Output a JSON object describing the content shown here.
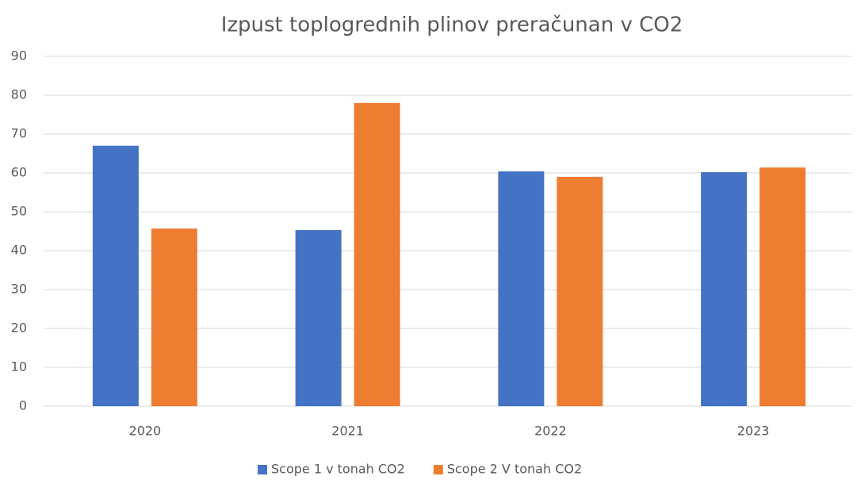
{
  "chart_data": {
    "type": "bar",
    "title": "Izpust toplogrednih plinov preračunan v CO2",
    "categories": [
      "2020",
      "2021",
      "2022",
      "2023"
    ],
    "series": [
      {
        "name": "Scope 1 v tonah CO2",
        "color": "#4472c4",
        "values": [
          67,
          45.3,
          60.4,
          60.2
        ]
      },
      {
        "name": "Scope 2 V tonah CO2",
        "color": "#ed7d31",
        "values": [
          45.7,
          78,
          59,
          61.4
        ]
      }
    ],
    "ylim": [
      0,
      90
    ],
    "yticks": [
      0,
      10,
      20,
      30,
      40,
      50,
      60,
      70,
      80,
      90
    ],
    "grid": true,
    "legend": "bottom"
  }
}
